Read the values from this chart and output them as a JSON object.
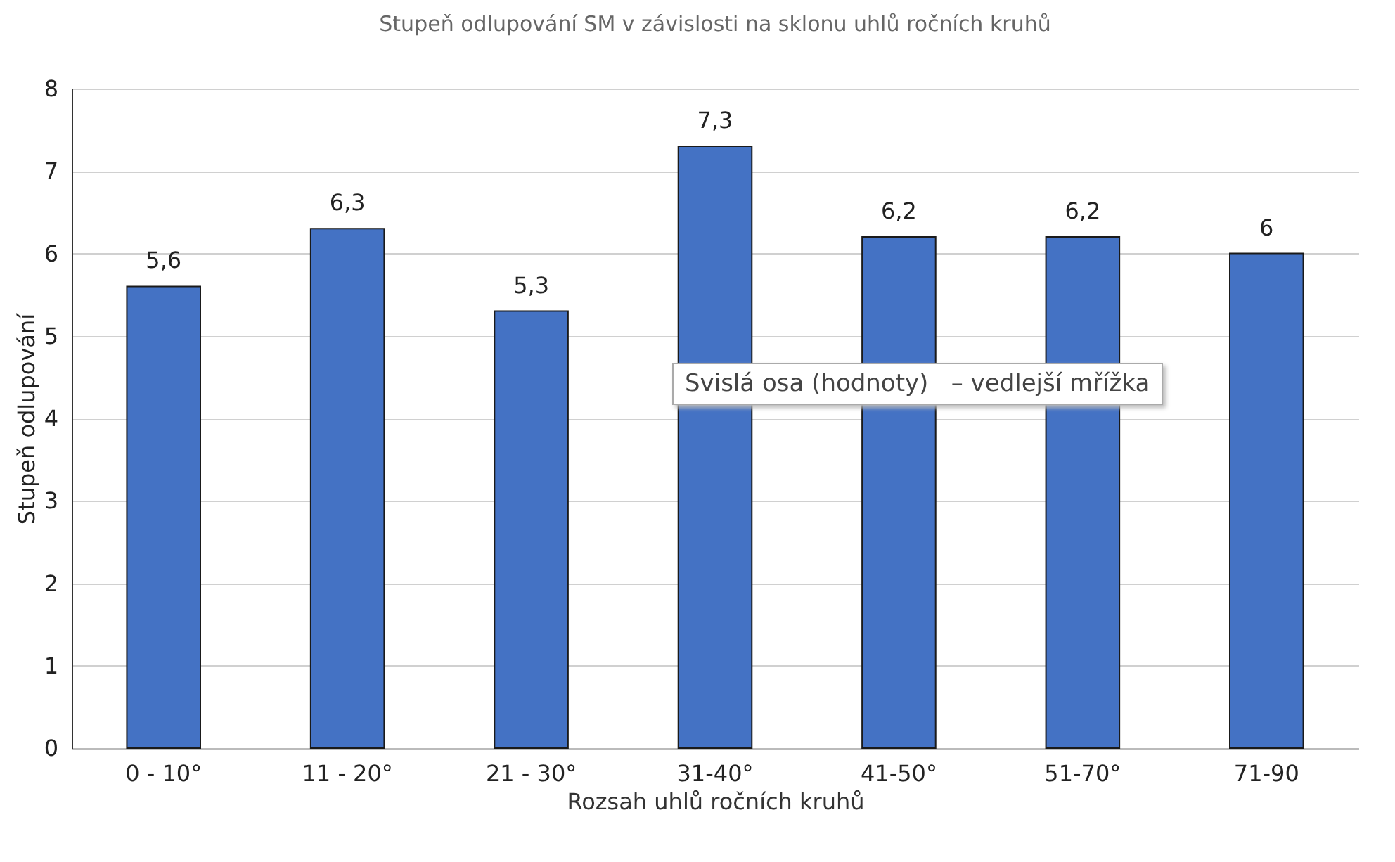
{
  "chart_data": {
    "type": "bar",
    "title": "Stupeň odlupování SM v závislosti na sklonu uhlů ročních kruhů",
    "xlabel": "Rozsah uhlů ročních kruhů",
    "ylabel": "Stupeň odlupování",
    "categories": [
      "0 - 10°",
      "11 - 20°",
      "21 - 30°",
      "31-40°",
      "41-50°",
      "51-70°",
      "71-90"
    ],
    "values": [
      5.6,
      6.3,
      5.3,
      7.3,
      6.2,
      6.2,
      6
    ],
    "value_labels": [
      "5,6",
      "6,3",
      "5,3",
      "7,3",
      "6,2",
      "6,2",
      "6"
    ],
    "color": "#4472c4",
    "ylim": [
      0,
      8
    ],
    "yticks": [
      0,
      1,
      2,
      3,
      4,
      5,
      6,
      7,
      8
    ],
    "grid": "y",
    "annotations": [
      "Svislá osa (hodnoty)   – vedlejší mřížka"
    ]
  }
}
